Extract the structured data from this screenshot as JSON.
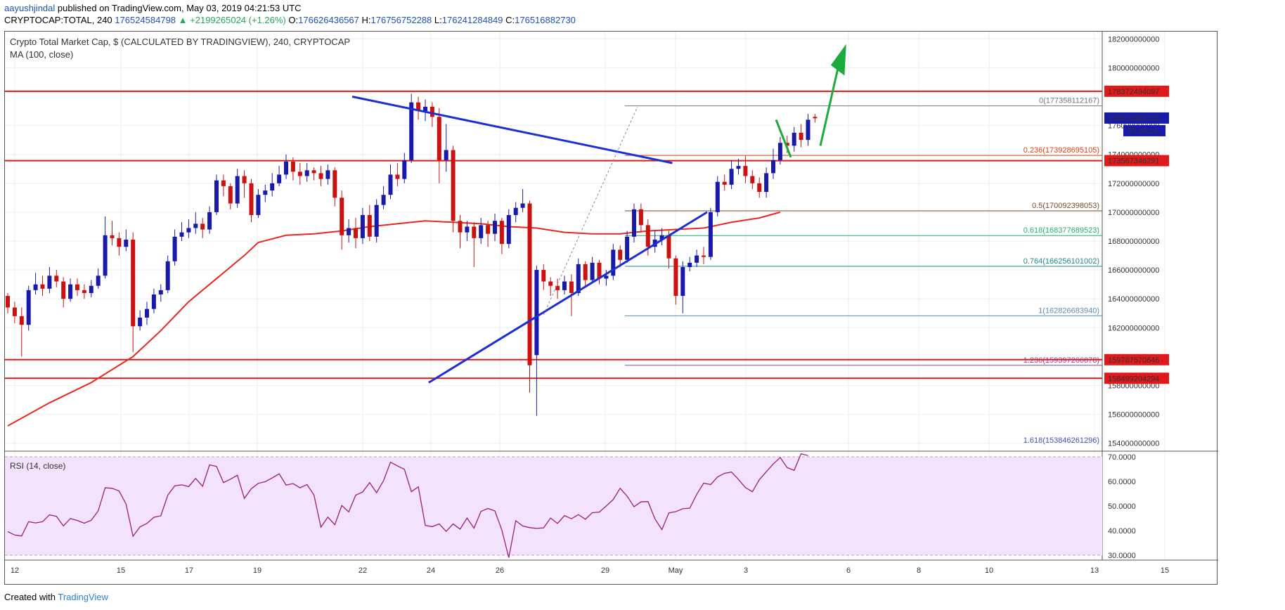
{
  "header": {
    "user": "aayushjindal",
    "published": " published on TradingView.com, May 03, 2019 04:21:53 UTC"
  },
  "ohlc": {
    "symbol": "CRYPTOCAP:TOTAL, 240",
    "last": "176524584798",
    "change": "▲ +2199265024 (+1.26%)",
    "o_label": "O:",
    "o": "176626436567",
    "h_label": "H:",
    "h": "176756752288",
    "l_label": "L:",
    "l": "176241284849",
    "c_label": "C:",
    "c": "176516882730"
  },
  "footer": {
    "created": "Created with",
    "brand": "TradingView"
  },
  "colors": {
    "up_candle": "#1a1aaa",
    "down_candle": "#cc1111",
    "ma": "#e8281f",
    "trendline": "#1a2fd6",
    "resistance": "#e01a1a",
    "arrow": "#1aab3c",
    "rsi_line": "#9b1f7a",
    "rsi_band": "#f2e2fb"
  },
  "chart_data": {
    "type": "candlestick",
    "title": "Crypto Total Market Cap, $ (CALCULATED BY TRADINGVIEW), 240, CRYPTOCAP",
    "indicator": "MA (100, close)",
    "x_ticks": [
      "12",
      "15",
      "17",
      "19",
      "22",
      "24",
      "26",
      "29",
      "May",
      "3",
      "6",
      "8",
      "10",
      "13",
      "15"
    ],
    "ylim": [
      153500000000,
      182500000000
    ],
    "y_ticks": [
      "154000000000",
      "156000000000",
      "158000000000",
      "162000000000",
      "164000000000",
      "166000000000",
      "168000000000",
      "170000000000",
      "172000000000",
      "174000000000",
      "176000000000",
      "180000000000",
      "182000000000"
    ],
    "price_labels": {
      "resistance_1": "178372494097",
      "last_price": "176516882730",
      "countdown": "03:38:14",
      "resistance_2": "173567346291",
      "support_1": "159787570646",
      "support_2": "158499204294"
    },
    "horizontal_lines": [
      {
        "name": "resistance_1",
        "value": 178372494097
      },
      {
        "name": "resistance_2",
        "value": 173567346291
      },
      {
        "name": "support_1",
        "value": 159787570646
      },
      {
        "name": "support_2",
        "value": 158499204294
      }
    ],
    "fibonacci": [
      {
        "level": "0",
        "price": "177358112167",
        "label": "0(177358112167)",
        "color": "#777777",
        "value": 177358112167
      },
      {
        "level": "0.236",
        "price": "173928695105",
        "label": "0.236(173928695105)",
        "color": "#d84315",
        "value": 173928695105
      },
      {
        "level": "0.5",
        "price": "170092398053",
        "label": "0.5(170092398053)",
        "color": "#7a4a2a",
        "value": 170092398053
      },
      {
        "level": "0.618",
        "price": "168377689523",
        "label": "0.618(168377689523)",
        "color": "#20b070",
        "value": 168377689523
      },
      {
        "level": "0.764",
        "price": "166256101002",
        "label": "0.764(166256101002)",
        "color": "#1f8a8a",
        "value": 166256101002
      },
      {
        "level": "1",
        "price": "162826683940",
        "label": "1(162826683940)",
        "color": "#5a8db0",
        "value": 162826683940
      },
      {
        "level": "1.236",
        "price": "159397266878",
        "label": "1.236(159397266878)",
        "color": "#8e44ad",
        "value": 159397266878
      },
      {
        "level": "1.618",
        "price": "153846261296",
        "label": "1.618(153846261296)",
        "color": "#3f51b5",
        "value": 153846261296
      }
    ],
    "candles": [
      [
        164.2,
        163.4,
        164.4,
        163.0
      ],
      [
        163.4,
        162.8,
        163.8,
        162.3
      ],
      [
        162.8,
        162.2,
        163.4,
        160.0
      ],
      [
        162.2,
        164.6,
        164.9,
        161.8
      ],
      [
        164.6,
        165.0,
        165.8,
        164.3
      ],
      [
        165.0,
        164.7,
        165.6,
        164.2
      ],
      [
        164.7,
        165.6,
        166.2,
        164.4
      ],
      [
        165.6,
        165.2,
        166.0,
        164.8
      ],
      [
        165.2,
        164.0,
        165.5,
        163.4
      ],
      [
        164.0,
        165.0,
        165.4,
        163.8
      ],
      [
        165.0,
        164.6,
        165.4,
        164.2
      ],
      [
        164.6,
        164.4,
        165.0,
        164.0
      ],
      [
        164.4,
        164.9,
        165.3,
        164.1
      ],
      [
        164.9,
        165.6,
        166.1,
        164.7
      ],
      [
        165.6,
        168.4,
        169.7,
        165.4
      ],
      [
        168.4,
        168.2,
        169.4,
        167.7
      ],
      [
        168.2,
        167.6,
        168.6,
        167.0
      ],
      [
        167.6,
        168.1,
        168.8,
        167.3
      ],
      [
        168.1,
        162.1,
        168.6,
        160.3
      ],
      [
        162.1,
        162.7,
        163.2,
        161.8
      ],
      [
        162.7,
        163.3,
        163.8,
        162.2
      ],
      [
        163.3,
        164.3,
        164.7,
        163.0
      ],
      [
        164.3,
        164.6,
        165.0,
        163.8
      ],
      [
        164.6,
        166.6,
        167.0,
        164.4
      ],
      [
        166.6,
        168.3,
        168.8,
        166.3
      ],
      [
        168.3,
        168.6,
        169.3,
        168.0
      ],
      [
        168.6,
        168.9,
        169.5,
        168.2
      ],
      [
        168.9,
        169.2,
        170.0,
        168.5
      ],
      [
        169.2,
        168.8,
        169.6,
        168.2
      ],
      [
        168.8,
        170.0,
        170.4,
        168.5
      ],
      [
        170.0,
        172.2,
        172.6,
        169.8
      ],
      [
        172.2,
        171.8,
        172.6,
        171.1
      ],
      [
        171.8,
        170.6,
        172.0,
        170.2
      ],
      [
        170.6,
        172.5,
        173.0,
        170.3
      ],
      [
        172.5,
        172.0,
        172.9,
        171.0
      ],
      [
        172.0,
        169.8,
        172.3,
        169.3
      ],
      [
        169.8,
        171.2,
        171.6,
        169.6
      ],
      [
        171.2,
        171.5,
        171.9,
        170.7
      ],
      [
        171.5,
        172.0,
        172.7,
        171.1
      ],
      [
        172.0,
        172.6,
        173.2,
        171.8
      ],
      [
        172.6,
        173.5,
        174.0,
        172.3
      ],
      [
        173.5,
        172.8,
        173.8,
        172.2
      ],
      [
        172.8,
        172.5,
        173.4,
        171.9
      ],
      [
        172.5,
        172.9,
        173.4,
        172.1
      ],
      [
        172.9,
        172.7,
        173.1,
        172.2
      ],
      [
        172.7,
        172.3,
        173.2,
        171.8
      ],
      [
        172.3,
        172.9,
        173.3,
        171.9
      ],
      [
        172.9,
        171.0,
        173.1,
        170.4
      ],
      [
        171.0,
        168.4,
        171.5,
        167.4
      ],
      [
        168.4,
        168.9,
        169.5,
        167.9
      ],
      [
        168.9,
        168.2,
        169.6,
        167.5
      ],
      [
        168.2,
        169.8,
        170.3,
        167.8
      ],
      [
        169.8,
        168.3,
        170.5,
        168.0
      ],
      [
        168.3,
        170.5,
        170.9,
        167.9
      ],
      [
        170.5,
        171.2,
        171.8,
        170.2
      ],
      [
        171.2,
        172.6,
        173.3,
        170.9
      ],
      [
        172.6,
        172.3,
        173.4,
        171.8
      ],
      [
        172.3,
        173.6,
        174.1,
        172.0
      ],
      [
        173.6,
        177.6,
        178.2,
        173.4
      ],
      [
        177.6,
        177.0,
        178.0,
        176.4
      ],
      [
        177.0,
        177.3,
        177.8,
        176.3
      ],
      [
        177.3,
        176.6,
        177.6,
        175.9
      ],
      [
        176.6,
        173.6,
        177.2,
        172.0
      ],
      [
        173.6,
        174.3,
        176.1,
        172.8
      ],
      [
        174.3,
        169.4,
        174.6,
        168.6
      ],
      [
        169.4,
        168.6,
        169.8,
        167.5
      ],
      [
        168.6,
        169.0,
        169.4,
        168.0
      ],
      [
        169.0,
        168.2,
        169.3,
        166.2
      ],
      [
        168.2,
        169.1,
        169.6,
        167.8
      ],
      [
        169.1,
        168.5,
        169.4,
        167.6
      ],
      [
        168.5,
        169.4,
        169.9,
        168.0
      ],
      [
        169.4,
        167.8,
        169.6,
        167.1
      ],
      [
        167.8,
        169.8,
        170.2,
        167.5
      ],
      [
        169.8,
        170.3,
        170.7,
        169.3
      ],
      [
        170.3,
        170.6,
        171.6,
        170.0
      ],
      [
        170.6,
        159.4,
        170.8,
        157.5
      ],
      [
        160.1,
        166.0,
        166.3,
        155.9
      ],
      [
        166.0,
        165.2,
        166.4,
        164.6
      ],
      [
        165.2,
        164.9,
        165.5,
        164.2
      ],
      [
        164.9,
        164.6,
        165.4,
        164.0
      ],
      [
        164.6,
        165.2,
        165.6,
        164.3
      ],
      [
        165.2,
        164.4,
        165.7,
        162.8
      ],
      [
        164.4,
        166.4,
        166.8,
        164.2
      ],
      [
        166.4,
        165.3,
        166.6,
        164.8
      ],
      [
        165.3,
        166.5,
        166.9,
        165.1
      ],
      [
        166.5,
        165.4,
        166.7,
        165.0
      ],
      [
        165.4,
        165.6,
        166.0,
        164.9
      ],
      [
        165.6,
        167.4,
        167.8,
        165.3
      ],
      [
        167.4,
        166.7,
        167.7,
        166.2
      ],
      [
        166.7,
        168.3,
        168.7,
        166.5
      ],
      [
        168.3,
        170.2,
        170.6,
        167.9
      ],
      [
        170.2,
        169.1,
        170.6,
        168.6
      ],
      [
        169.1,
        167.6,
        169.5,
        167.0
      ],
      [
        167.6,
        168.1,
        168.7,
        167.2
      ],
      [
        168.1,
        168.4,
        168.9,
        167.7
      ],
      [
        168.4,
        166.8,
        168.7,
        166.1
      ],
      [
        166.8,
        164.2,
        167.0,
        163.6
      ],
      [
        164.2,
        166.2,
        166.6,
        163.0
      ],
      [
        166.2,
        166.5,
        166.9,
        165.9
      ],
      [
        166.5,
        167.0,
        167.4,
        166.2
      ],
      [
        167.0,
        166.9,
        167.6,
        166.4
      ],
      [
        166.9,
        170.0,
        170.3,
        166.7
      ],
      [
        170.0,
        172.1,
        172.5,
        169.7
      ],
      [
        172.1,
        171.9,
        172.6,
        171.5
      ],
      [
        171.9,
        173.0,
        173.6,
        171.6
      ],
      [
        173.0,
        173.2,
        173.7,
        172.6
      ],
      [
        173.2,
        172.5,
        173.9,
        172.0
      ],
      [
        172.5,
        172.0,
        172.9,
        171.6
      ],
      [
        172.0,
        171.4,
        172.4,
        171.0
      ],
      [
        171.4,
        172.7,
        173.1,
        171.0
      ],
      [
        172.7,
        173.6,
        174.4,
        172.3
      ],
      [
        173.6,
        174.8,
        175.2,
        173.3
      ],
      [
        174.8,
        174.6,
        175.3,
        174.1
      ],
      [
        174.6,
        175.5,
        175.9,
        174.2
      ],
      [
        175.5,
        175.0,
        176.1,
        174.5
      ],
      [
        175.0,
        176.4,
        176.8,
        174.6
      ],
      [
        176.6,
        176.5,
        176.8,
        176.2
      ]
    ],
    "ma100": [
      [
        0,
        155.2
      ],
      [
        6,
        156.8
      ],
      [
        12,
        158.2
      ],
      [
        18,
        160.0
      ],
      [
        22,
        161.8
      ],
      [
        26,
        163.8
      ],
      [
        30,
        165.4
      ],
      [
        34,
        167.0
      ],
      [
        36,
        167.9
      ],
      [
        40,
        168.4
      ],
      [
        44,
        168.5
      ],
      [
        48,
        168.7
      ],
      [
        52,
        169.0
      ],
      [
        56,
        169.2
      ],
      [
        60,
        169.4
      ],
      [
        64,
        169.3
      ],
      [
        68,
        169.2
      ],
      [
        72,
        169.0
      ],
      [
        76,
        168.9
      ],
      [
        80,
        168.6
      ],
      [
        84,
        168.5
      ],
      [
        88,
        168.5
      ],
      [
        92,
        168.7
      ],
      [
        96,
        168.8
      ],
      [
        100,
        168.9
      ],
      [
        104,
        169.3
      ],
      [
        108,
        169.6
      ],
      [
        111,
        170.0
      ]
    ],
    "rsi": {
      "label": "RSI (14, close)",
      "ylim": [
        28,
        72
      ],
      "y_ticks": [
        "30.0000",
        "40.0000",
        "50.0000",
        "60.0000",
        "70.0000"
      ],
      "values": [
        39.6,
        38.2,
        37.8,
        43.6,
        43.1,
        43.6,
        46.4,
        45.8,
        41.9,
        44.9,
        44.1,
        43.0,
        44.2,
        48.0,
        57.4,
        57.2,
        56.1,
        50.8,
        37.7,
        41.5,
        42.9,
        45.4,
        46.0,
        54.4,
        58.2,
        58.6,
        57.9,
        61.2,
        58.0,
        66.7,
        66.1,
        59.5,
        60.9,
        62.5,
        53.1,
        57.0,
        59.2,
        59.9,
        61.4,
        63.1,
        58.5,
        59.1,
        57.4,
        58.7,
        54.5,
        41.4,
        45.5,
        42.4,
        50.2,
        47.6,
        54.4,
        55.7,
        59.5,
        55.4,
        60.3,
        67.8,
        66.3,
        64.9,
        55.8,
        57.8,
        42.1,
        41.6,
        42.7,
        39.7,
        42.7,
        40.6,
        45.1,
        41.0,
        47.8,
        49.0,
        48.0,
        40.2,
        29.0,
        44.0,
        41.9,
        41.2,
        40.9,
        41.1,
        45.1,
        42.9,
        46.1,
        44.8,
        46.5,
        44.6,
        47.3,
        47.5,
        50.0,
        52.6,
        57.2,
        54.0,
        49.7,
        51.7,
        51.8,
        44.8,
        40.4,
        47.2,
        47.7,
        48.9,
        49.1,
        54.7,
        59.3,
        58.7,
        61.8,
        63.3,
        63.8,
        60.8,
        57.5,
        55.8,
        60.7,
        63.9,
        67.1,
        69.7,
        65.6,
        64.5,
        71.2,
        70.5
      ]
    }
  }
}
